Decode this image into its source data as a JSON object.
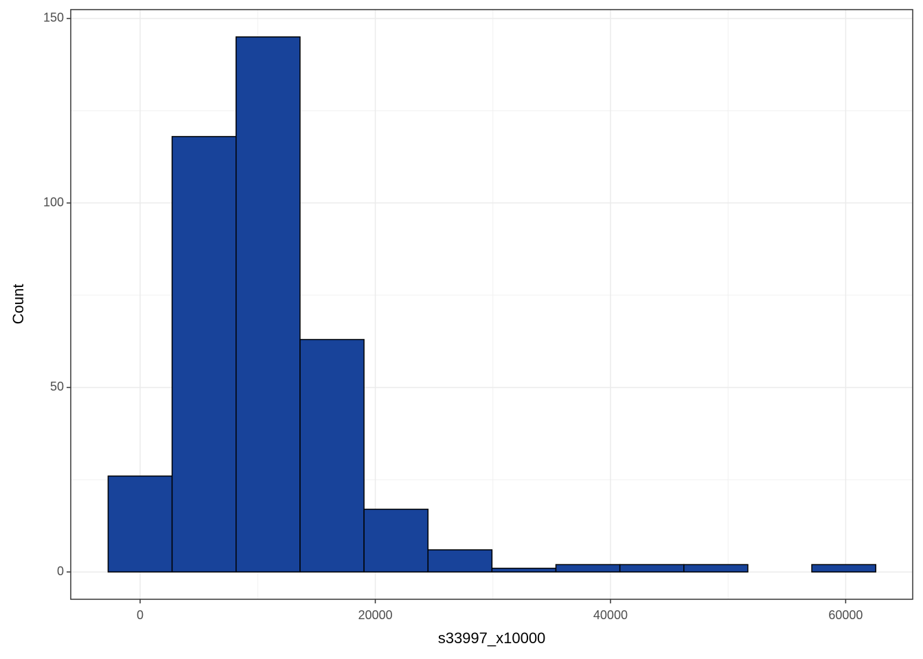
{
  "chart_data": {
    "type": "histogram",
    "xlabel": "s33997_x10000",
    "ylabel": "Count",
    "bins": [
      -2720,
      2720,
      8160,
      13600,
      19040,
      24480,
      29920,
      35360,
      40800,
      46240,
      51680,
      57120,
      62560
    ],
    "values": [
      26,
      118,
      145,
      63,
      17,
      6,
      1,
      2,
      2,
      2,
      0,
      2
    ],
    "color": "#18439a",
    "edgecolor": "#000000",
    "xlim": [
      -5900,
      65700
    ],
    "xticks": [
      0,
      20000,
      40000,
      60000
    ],
    "xminorticks": [
      10000,
      30000,
      50000
    ],
    "ylim": [
      -7.4,
      152.4
    ],
    "yticks": [
      0,
      50,
      100,
      150
    ],
    "yminorticks": [
      25,
      75,
      125
    ],
    "grid": true
  }
}
